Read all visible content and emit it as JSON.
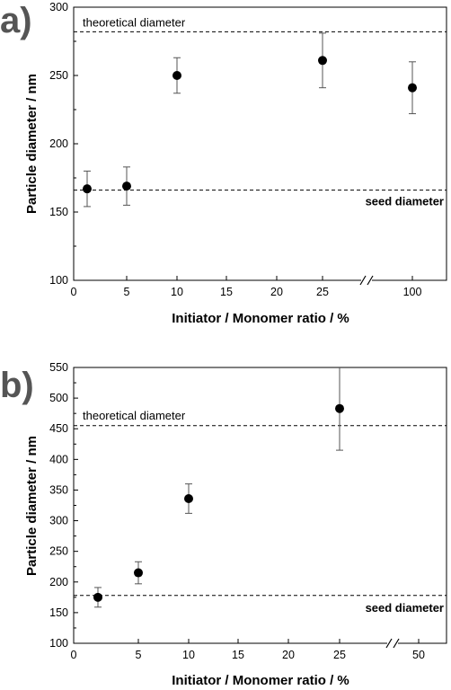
{
  "chart_data": [
    {
      "panel_label": "a)",
      "type": "scatter",
      "xlabel": "Initiator / Monomer ratio / %",
      "ylabel": "Particle diameter / nm",
      "ylim": [
        100,
        300
      ],
      "yticks": [
        "100",
        "150",
        "200",
        "250",
        "300"
      ],
      "xticks": [
        "0",
        "5",
        "10",
        "15",
        "20",
        "25",
        "100"
      ],
      "axis_break": true,
      "grid": false,
      "reference_lines": [
        {
          "label": "theoretical diameter",
          "y": 282
        },
        {
          "label": "seed diameter",
          "y": 166
        }
      ],
      "series": [
        {
          "x": [
            "1",
            "5",
            "10",
            "25",
            "100"
          ],
          "values": [
            167,
            169,
            250,
            261,
            241
          ],
          "error_low": [
            154,
            155,
            237,
            241,
            222
          ],
          "error_high": [
            180,
            183,
            263,
            281,
            260
          ]
        }
      ]
    },
    {
      "panel_label": "b)",
      "type": "scatter",
      "xlabel": "Initiator / Monomer ratio / %",
      "ylabel": "Particle diameter / nm",
      "ylim": [
        100,
        550
      ],
      "yticks": [
        "100",
        "150",
        "200",
        "250",
        "300",
        "350",
        "400",
        "450",
        "500",
        "550"
      ],
      "xticks": [
        "0",
        "5",
        "10",
        "15",
        "20",
        "25",
        "50"
      ],
      "axis_break": true,
      "grid": false,
      "reference_lines": [
        {
          "label": "theoretical diameter",
          "y": 455
        },
        {
          "label": "seed diameter",
          "y": 178
        }
      ],
      "series": [
        {
          "x": [
            "1",
            "5",
            "10",
            "25"
          ],
          "values": [
            175,
            215,
            336,
            483
          ],
          "error_low": [
            159,
            197,
            312,
            415
          ],
          "error_high": [
            191,
            233,
            360,
            550
          ]
        }
      ]
    }
  ]
}
